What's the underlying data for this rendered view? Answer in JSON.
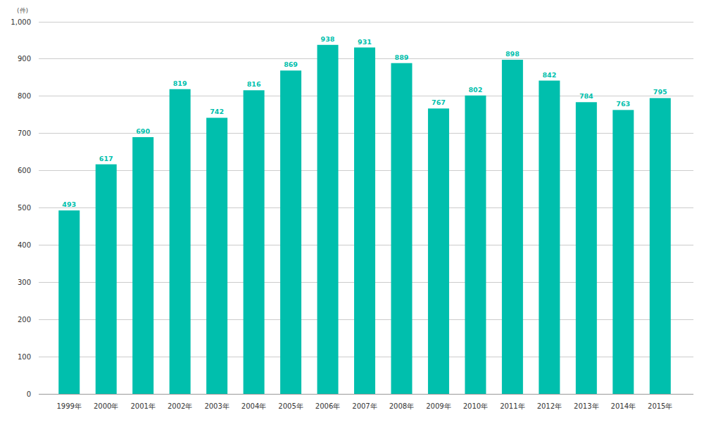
{
  "chart_data": {
    "type": "bar",
    "y_label": "(件)",
    "categories": [
      "1999年",
      "2000年",
      "2001年",
      "2002年",
      "2003年",
      "2004年",
      "2005年",
      "2006年",
      "2007年",
      "2008年",
      "2009年",
      "2010年",
      "2011年",
      "2012年",
      "2013年",
      "2014年",
      "2015年"
    ],
    "values": [
      493,
      617,
      690,
      819,
      742,
      816,
      869,
      938,
      931,
      889,
      767,
      802,
      898,
      842,
      784,
      763,
      795
    ],
    "color": "#00bfad",
    "ylim": [
      0,
      1000
    ],
    "yticks": [
      0,
      100,
      200,
      300,
      400,
      500,
      600,
      700,
      800,
      900,
      {
        "value": 1000,
        "label": "1,000"
      }
    ],
    "grid": true,
    "data_labels": true
  }
}
